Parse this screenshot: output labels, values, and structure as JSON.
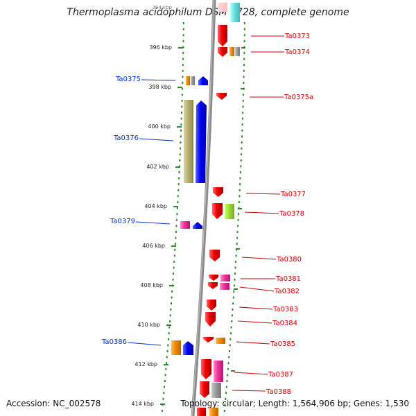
{
  "title": "Thermoplasma acidophilum DSM 1728, complete genome",
  "footer": {
    "accession": "Accession: NC_002578",
    "topology": "Topology: circular; Length: 1,564,906 bp; Genes: 1,530"
  },
  "ruler_labels": [
    "394 kbp",
    "396 kbp",
    "398 kbp",
    "400 kbp",
    "402 kbp",
    "404 kbp",
    "406 kbp",
    "408 kbp",
    "410 kbp",
    "412 kbp",
    "414 kbp"
  ],
  "genes_left": [
    {
      "id": "Ta0375",
      "color": "#0033cc"
    },
    {
      "id": "Ta0376",
      "color": "#0033cc"
    },
    {
      "id": "Ta0379",
      "color": "#0033cc"
    },
    {
      "id": "Ta0386",
      "color": "#0033cc"
    }
  ],
  "genes_right": [
    {
      "id": "Ta0373",
      "color": "#cc0000"
    },
    {
      "id": "Ta0374",
      "color": "#cc0000"
    },
    {
      "id": "Ta0375a",
      "color": "#cc0000"
    },
    {
      "id": "Ta0377",
      "color": "#cc0000"
    },
    {
      "id": "Ta0378",
      "color": "#cc0000"
    },
    {
      "id": "Ta0380",
      "color": "#cc0000"
    },
    {
      "id": "Ta0381",
      "color": "#cc0000"
    },
    {
      "id": "Ta0382",
      "color": "#cc0000"
    },
    {
      "id": "Ta0383",
      "color": "#cc0000"
    },
    {
      "id": "Ta0384",
      "color": "#cc0000"
    },
    {
      "id": "Ta0385",
      "color": "#cc0000"
    },
    {
      "id": "Ta0387",
      "color": "#cc0000"
    },
    {
      "id": "Ta0388",
      "color": "#cc0000"
    }
  ],
  "colors": {
    "backbone": "#8a8a8a",
    "dots": "#2a8a2a",
    "forward_gene": "#0000ee",
    "reverse_gene": "#ee0000",
    "cog_khaki": "#b8b070",
    "cog_orange": "#ee8800",
    "cog_magenta": "#ee3399",
    "cog_lime": "#99dd33",
    "cog_grey": "#999999",
    "cog_cyan": "#66dddd"
  }
}
